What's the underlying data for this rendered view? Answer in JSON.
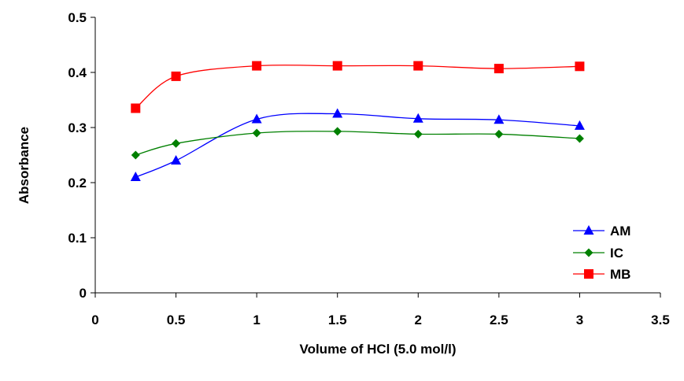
{
  "chart_data": {
    "type": "line",
    "title": "",
    "xlabel": "Volume of HCl (5.0 mol/l)",
    "ylabel": "Absorbance",
    "xlim": [
      0,
      3.5
    ],
    "ylim": [
      0,
      0.5
    ],
    "x_ticks": [
      "0",
      "0.5",
      "1",
      "1.5",
      "2",
      "2.5",
      "3",
      "3.5"
    ],
    "y_ticks": [
      "0",
      "0.1",
      "0.2",
      "0.3",
      "0.4",
      "0.5"
    ],
    "grid": false,
    "legend_position": "bottom-right",
    "smooth": true,
    "series": [
      {
        "name": "AM",
        "color": "#0000ff",
        "marker": "triangle",
        "x": [
          0.25,
          0.5,
          1,
          1.5,
          2,
          2.5,
          3
        ],
        "y": [
          0.21,
          0.24,
          0.315,
          0.325,
          0.316,
          0.314,
          0.303
        ]
      },
      {
        "name": "IC",
        "color": "#008000",
        "marker": "diamond",
        "x": [
          0.25,
          0.5,
          1,
          1.5,
          2,
          2.5,
          3
        ],
        "y": [
          0.25,
          0.271,
          0.29,
          0.293,
          0.288,
          0.288,
          0.28
        ]
      },
      {
        "name": "MB",
        "color": "#ff0000",
        "marker": "square",
        "x": [
          0.25,
          0.5,
          1,
          1.5,
          2,
          2.5,
          3
        ],
        "y": [
          0.335,
          0.393,
          0.412,
          0.412,
          0.412,
          0.407,
          0.411
        ]
      }
    ]
  }
}
